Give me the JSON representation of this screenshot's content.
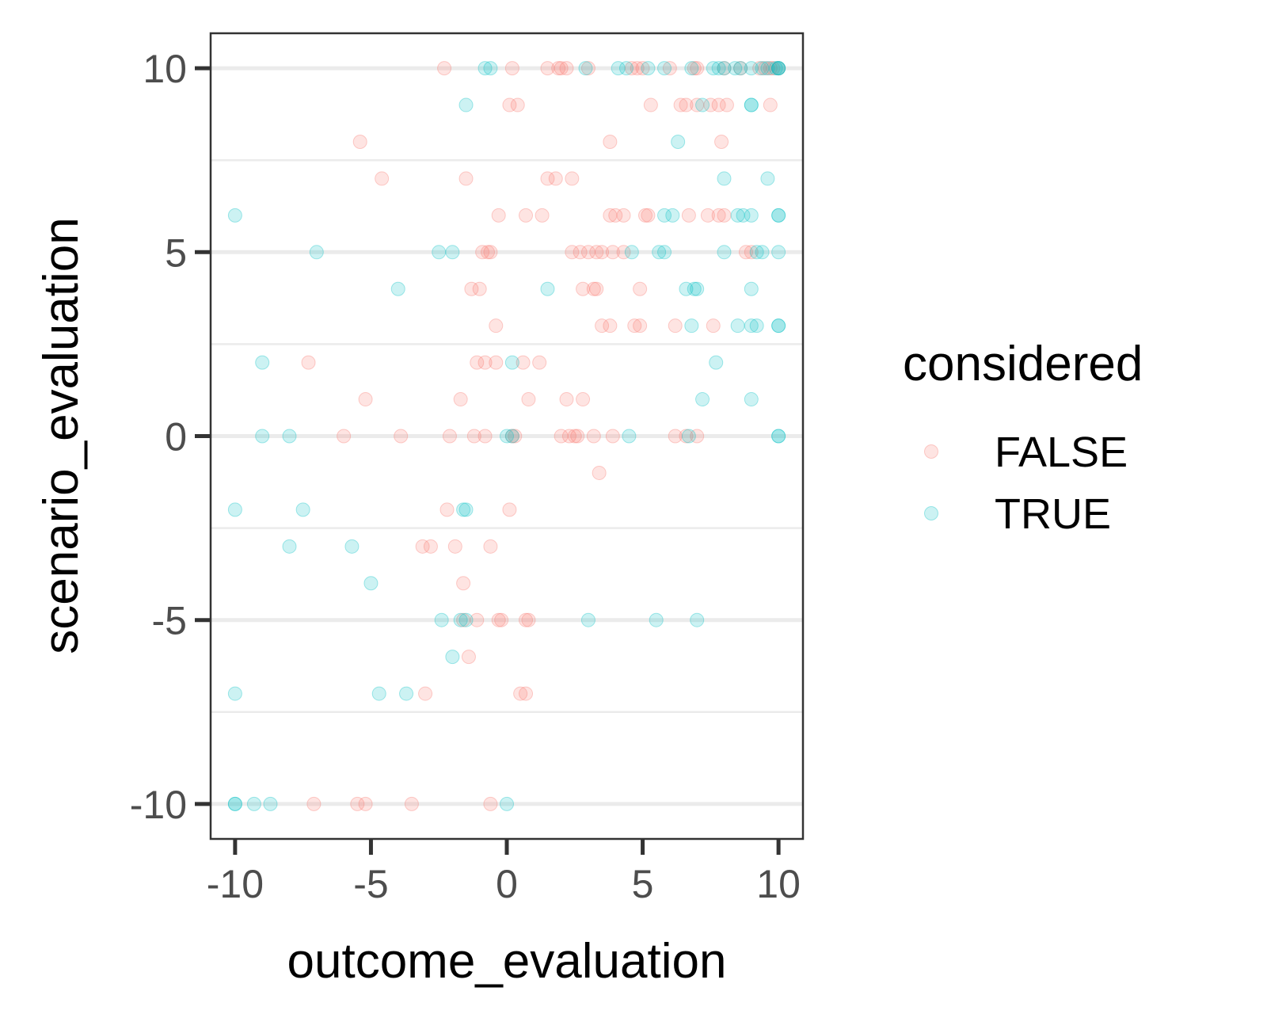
{
  "chart_data": {
    "type": "scatter",
    "xlabel": "outcome_evaluation",
    "ylabel": "scenario_evaluation",
    "xlim": [
      -10.9,
      10.9
    ],
    "ylim": [
      -10.95,
      10.95
    ],
    "x_ticks": [
      -10,
      -5,
      0,
      5,
      10
    ],
    "y_ticks": [
      -10,
      -5,
      0,
      5,
      10
    ],
    "x_tick_labels": [
      "-10",
      "-5",
      "0",
      "5",
      "10"
    ],
    "y_tick_labels": [
      "-10",
      "-5",
      "0",
      "5",
      "10"
    ],
    "major_gridlines_y": [
      -10,
      -5,
      0,
      5,
      10
    ],
    "minor_gridlines_y": [
      -7.5,
      -2.5,
      2.5,
      7.5
    ],
    "point_alpha": 0.2,
    "legend": {
      "title": "considered",
      "placement": "right",
      "entries": [
        "FALSE",
        "TRUE"
      ]
    },
    "series": [
      {
        "name": "FALSE",
        "color": "#F8766D",
        "points": [
          [
            -2.3,
            10
          ],
          [
            0.2,
            10
          ],
          [
            1.5,
            10
          ],
          [
            1.9,
            10
          ],
          [
            2.0,
            10
          ],
          [
            2.2,
            10
          ],
          [
            3.0,
            10
          ],
          [
            4.6,
            10
          ],
          [
            4.8,
            10
          ],
          [
            5.0,
            10
          ],
          [
            6.0,
            10
          ],
          [
            6.9,
            10
          ],
          [
            7.0,
            10
          ],
          [
            8.0,
            10
          ],
          [
            8.6,
            10
          ],
          [
            9.3,
            10
          ],
          [
            9.5,
            10
          ],
          [
            9.7,
            10
          ],
          [
            9.8,
            10
          ],
          [
            10,
            10
          ],
          [
            0.1,
            9
          ],
          [
            0.4,
            9
          ],
          [
            5.3,
            9
          ],
          [
            6.4,
            9
          ],
          [
            6.6,
            9
          ],
          [
            7.0,
            9
          ],
          [
            7.5,
            9
          ],
          [
            7.8,
            9
          ],
          [
            8.1,
            9
          ],
          [
            9.7,
            9
          ],
          [
            -5.4,
            8
          ],
          [
            3.8,
            8
          ],
          [
            7.9,
            8
          ],
          [
            -4.6,
            7
          ],
          [
            -1.5,
            7
          ],
          [
            1.5,
            7
          ],
          [
            1.8,
            7
          ],
          [
            2.4,
            7
          ],
          [
            -0.3,
            6
          ],
          [
            0.7,
            6
          ],
          [
            1.3,
            6
          ],
          [
            3.8,
            6
          ],
          [
            4.0,
            6
          ],
          [
            4.3,
            6
          ],
          [
            5.1,
            6
          ],
          [
            5.2,
            6
          ],
          [
            6.7,
            6
          ],
          [
            7.4,
            6
          ],
          [
            7.8,
            6
          ],
          [
            8.0,
            6
          ],
          [
            -0.9,
            5
          ],
          [
            -0.7,
            5
          ],
          [
            -0.6,
            5
          ],
          [
            2.4,
            5
          ],
          [
            2.7,
            5
          ],
          [
            3.0,
            5
          ],
          [
            3.3,
            5
          ],
          [
            3.5,
            5
          ],
          [
            3.9,
            5
          ],
          [
            4.3,
            5
          ],
          [
            8.8,
            5
          ],
          [
            9.0,
            5
          ],
          [
            -1.3,
            4
          ],
          [
            -1.0,
            4
          ],
          [
            2.8,
            4
          ],
          [
            3.2,
            4
          ],
          [
            3.3,
            4
          ],
          [
            4.9,
            4
          ],
          [
            -0.4,
            3
          ],
          [
            3.5,
            3
          ],
          [
            3.8,
            3
          ],
          [
            4.7,
            3
          ],
          [
            4.9,
            3
          ],
          [
            6.2,
            3
          ],
          [
            7.6,
            3
          ],
          [
            -7.3,
            2
          ],
          [
            -1.1,
            2
          ],
          [
            -0.8,
            2
          ],
          [
            -0.4,
            2
          ],
          [
            0.6,
            2
          ],
          [
            1.2,
            2
          ],
          [
            -5.2,
            1
          ],
          [
            -1.7,
            1
          ],
          [
            0.8,
            1
          ],
          [
            2.2,
            1
          ],
          [
            2.8,
            1
          ],
          [
            -6.0,
            0
          ],
          [
            -3.9,
            0
          ],
          [
            -2.1,
            0
          ],
          [
            -1.2,
            0
          ],
          [
            -0.8,
            0
          ],
          [
            0.2,
            0
          ],
          [
            0.3,
            0
          ],
          [
            2.0,
            0
          ],
          [
            2.3,
            0
          ],
          [
            2.5,
            0
          ],
          [
            2.6,
            0
          ],
          [
            3.2,
            0
          ],
          [
            3.9,
            0
          ],
          [
            6.2,
            0
          ],
          [
            6.6,
            0
          ],
          [
            7.0,
            0
          ],
          [
            3.4,
            -1
          ],
          [
            -2.2,
            -2
          ],
          [
            0.1,
            -2
          ],
          [
            -3.1,
            -3
          ],
          [
            -2.8,
            -3
          ],
          [
            -1.9,
            -3
          ],
          [
            -0.6,
            -3
          ],
          [
            -1.6,
            -4
          ],
          [
            -1.6,
            -5
          ],
          [
            -1.1,
            -5
          ],
          [
            -0.3,
            -5
          ],
          [
            -0.2,
            -5
          ],
          [
            0.7,
            -5
          ],
          [
            0.8,
            -5
          ],
          [
            -1.4,
            -6
          ],
          [
            -3.0,
            -7
          ],
          [
            0.5,
            -7
          ],
          [
            0.7,
            -7
          ],
          [
            -7.1,
            -10
          ],
          [
            -5.5,
            -10
          ],
          [
            -5.2,
            -10
          ],
          [
            -3.5,
            -10
          ],
          [
            -0.6,
            -10
          ]
        ]
      },
      {
        "name": "TRUE",
        "color": "#00BFC4",
        "points": [
          [
            -0.8,
            10
          ],
          [
            -0.6,
            10
          ],
          [
            2.9,
            10
          ],
          [
            4.1,
            10
          ],
          [
            4.4,
            10
          ],
          [
            5.2,
            10
          ],
          [
            5.8,
            10
          ],
          [
            6.8,
            10
          ],
          [
            7.6,
            10
          ],
          [
            7.8,
            10
          ],
          [
            8.0,
            10
          ],
          [
            8.4,
            10
          ],
          [
            8.6,
            10
          ],
          [
            9.0,
            10
          ],
          [
            9.4,
            10
          ],
          [
            9.6,
            10
          ],
          [
            9.9,
            10
          ],
          [
            10,
            10
          ],
          [
            10,
            10
          ],
          [
            10,
            10
          ],
          [
            -1.5,
            9
          ],
          [
            7.2,
            9
          ],
          [
            9.0,
            9
          ],
          [
            9.0,
            9
          ],
          [
            6.3,
            8
          ],
          [
            8.0,
            7
          ],
          [
            9.6,
            7
          ],
          [
            -10,
            6
          ],
          [
            5.8,
            6
          ],
          [
            6.1,
            6
          ],
          [
            8.5,
            6
          ],
          [
            8.7,
            6
          ],
          [
            9.0,
            6
          ],
          [
            10,
            6
          ],
          [
            10,
            6
          ],
          [
            -7.0,
            5
          ],
          [
            -2.5,
            5
          ],
          [
            -2.0,
            5
          ],
          [
            4.6,
            5
          ],
          [
            5.6,
            5
          ],
          [
            5.8,
            5
          ],
          [
            8.0,
            5
          ],
          [
            9.2,
            5
          ],
          [
            9.4,
            5
          ],
          [
            10,
            5
          ],
          [
            -4.0,
            4
          ],
          [
            1.5,
            4
          ],
          [
            6.6,
            4
          ],
          [
            6.9,
            4
          ],
          [
            7.0,
            4
          ],
          [
            9.0,
            4
          ],
          [
            6.8,
            3
          ],
          [
            8.5,
            3
          ],
          [
            9.0,
            3
          ],
          [
            9.2,
            3
          ],
          [
            10,
            3
          ],
          [
            10,
            3
          ],
          [
            -9.0,
            2
          ],
          [
            0.2,
            2
          ],
          [
            7.7,
            2
          ],
          [
            7.2,
            1
          ],
          [
            9.0,
            1
          ],
          [
            -9.0,
            0
          ],
          [
            -8.0,
            0
          ],
          [
            0.0,
            0
          ],
          [
            0.2,
            0
          ],
          [
            4.5,
            0
          ],
          [
            6.7,
            0
          ],
          [
            10,
            0
          ],
          [
            10,
            0
          ],
          [
            -1.5,
            -2
          ],
          [
            -1.6,
            -2
          ],
          [
            -7.5,
            -2
          ],
          [
            -10,
            -2
          ],
          [
            -8.0,
            -3
          ],
          [
            -5.7,
            -3
          ],
          [
            -5.0,
            -4
          ],
          [
            -2.4,
            -5
          ],
          [
            -1.7,
            -5
          ],
          [
            -1.5,
            -5
          ],
          [
            3.0,
            -5
          ],
          [
            5.5,
            -5
          ],
          [
            7.0,
            -5
          ],
          [
            -2.0,
            -6
          ],
          [
            -10,
            -7
          ],
          [
            -4.7,
            -7
          ],
          [
            -3.7,
            -7
          ],
          [
            -10,
            -10
          ],
          [
            -10,
            -10
          ],
          [
            -9.3,
            -10
          ],
          [
            -8.7,
            -10
          ],
          [
            0.0,
            -10
          ]
        ]
      }
    ]
  }
}
